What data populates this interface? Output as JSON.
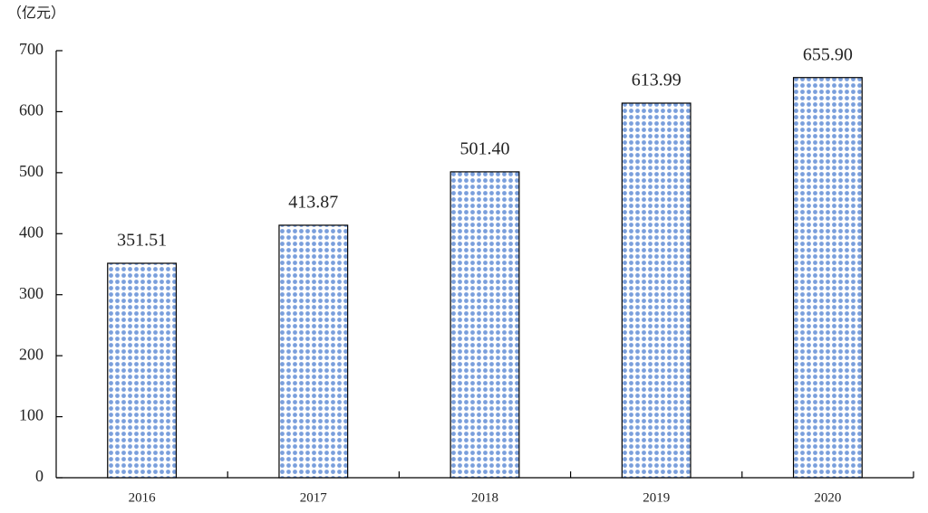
{
  "chart_data": {
    "type": "bar",
    "y_label": "（亿元）",
    "categories": [
      "2016",
      "2017",
      "2018",
      "2019",
      "2020"
    ],
    "values": [
      351.51,
      413.87,
      501.4,
      613.99,
      655.9
    ],
    "value_labels": [
      "351.51",
      "413.87",
      "501.40",
      "613.99",
      "655.90"
    ],
    "color": "#7a9fdc",
    "ylim": [
      0,
      700
    ],
    "yticks": [
      0,
      100,
      200,
      300,
      400,
      500,
      600,
      700
    ],
    "grid": false
  }
}
